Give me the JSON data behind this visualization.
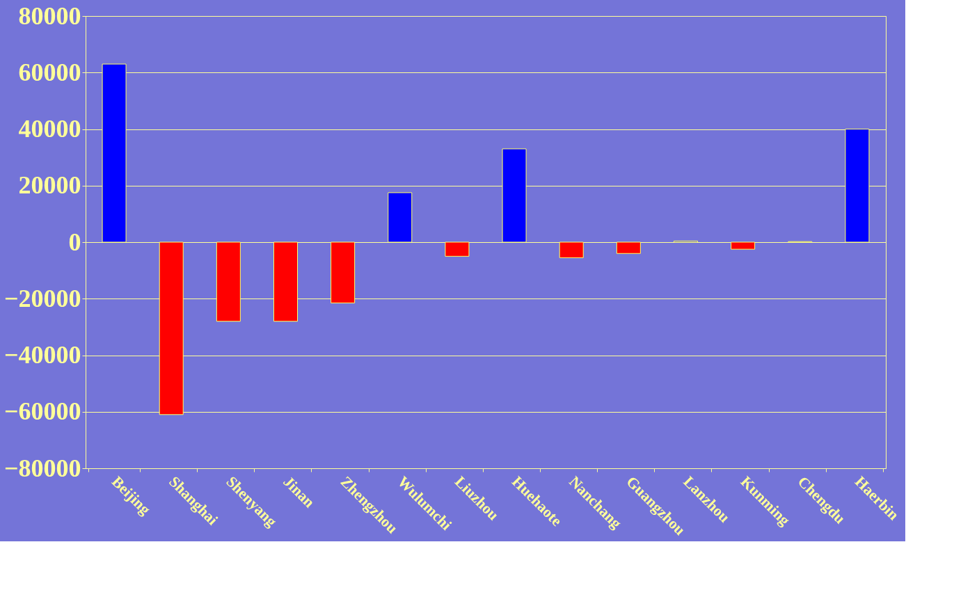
{
  "chart_data": {
    "type": "bar",
    "categories": [
      "Beijing",
      "Shanghai",
      "Shenyang",
      "Jinan",
      "Zhengzhou",
      "Wulumchi",
      "Liuzhou",
      "Huehaote",
      "Nanchang",
      "Guangzhou",
      "Lanzhou",
      "Kunming",
      "Chengdu",
      "Haerbin"
    ],
    "values": [
      63000,
      -61000,
      -28000,
      -28000,
      -21500,
      17500,
      -5000,
      33000,
      -5500,
      -4000,
      400,
      -2500,
      200,
      40000
    ],
    "colors": [
      "#0000ff",
      "#ff0000",
      "#ff0000",
      "#ff0000",
      "#ff0000",
      "#0000ff",
      "#ff0000",
      "#0000ff",
      "#ff0000",
      "#ff0000",
      "#0000ff",
      "#ff0000",
      "#0000ff",
      "#0000ff"
    ],
    "ylim": [
      -80000,
      80000
    ],
    "yticks": [
      -80000,
      -60000,
      -40000,
      -20000,
      0,
      20000,
      40000,
      60000,
      80000
    ],
    "grid": "y"
  }
}
